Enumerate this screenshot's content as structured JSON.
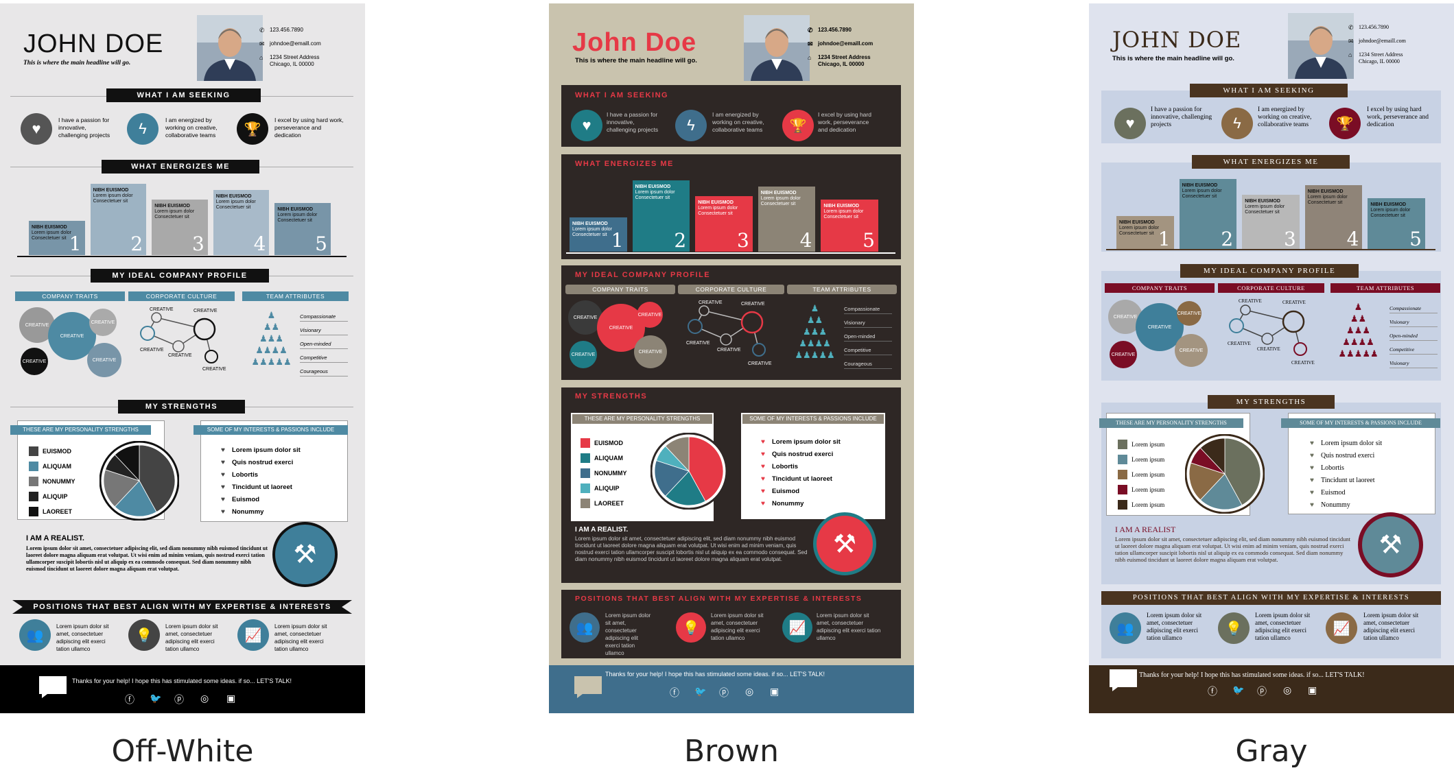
{
  "shared": {
    "name_upper": "JOHN DOE",
    "name_mixed": "John Doe",
    "headline": "This is where the main headline will go.",
    "phone": "123.456.7890",
    "email": "johndoe@emaill.com",
    "address1": "1234 Street Address",
    "address2": "Chicago, IL 00000",
    "seeking": "WHAT I AM SEEKING",
    "seek1": "I have a passion for innovative, challenging projects",
    "seek2": "I am energized by working on creative, collaborative teams",
    "seek3": "I excel by using hard work, perseverance and dedication",
    "energizes": "WHAT ENERGIZES ME",
    "bar_title": "NIBH EUISMOD",
    "bar_sub": "Lorem ipsum dolor Consectetuer sit",
    "bar_numbers": [
      "1",
      "2",
      "3",
      "4",
      "5"
    ],
    "company_profile": "MY IDEAL COMPANY PROFILE",
    "company_traits": "COMPANY TRAITS",
    "corporate_culture": "CORPORATE CULTURE",
    "team_attributes": "TEAM ATTRIBUTES",
    "creative": "CREATIVE",
    "attributes": [
      "Compassionate",
      "Visionary",
      "Open-minded",
      "Competitive",
      "Courageous"
    ],
    "gray_attributes": [
      "Compassionate",
      "Visionary",
      "Open-minded",
      "Competitive",
      "Visionary"
    ],
    "strengths": "MY STRENGTHS",
    "personality": "THESE ARE MY PERSONALITY STRENGTHS",
    "interests": "SOME OF MY INTERESTS & PASSIONS INCLUDE",
    "strength_items": [
      "EUISMOD",
      "ALIQUAM",
      "NONUMMY",
      "ALIQUIP",
      "LAOREET"
    ],
    "gray_strength_items": [
      "Lorem ipsum",
      "Lorem ipsum",
      "Lorem ipsum",
      "Lorem ipsum",
      "Lorem ipsum"
    ],
    "interest_items": [
      "Lorem ipsum dolor sit",
      "Quis nostrud exerci",
      "Lobortis",
      "Tincidunt ut laoreet",
      "Euismod",
      "Nonummy"
    ],
    "realist_upper": "I AM A REALIST.",
    "realist_mixed": "I AM A REALIST",
    "realist_text": "Lorem ipsum dolor sit amet, consectetuer adipiscing elit, sed diam nonummy nibh euismod tincidunt ut laoreet dolore magna aliquam erat volutpat. Ut wisi enim ad minim veniam, quis nostrud exerci tation ullamcorper suscipit lobortis nisl ut aliquip ex ea commodo consequat. Sed diam nonummy nibh euismod tincidunt ut laoreet dolore magna aliquam erat volutpat.",
    "positions": "POSITIONS THAT BEST ALIGN WITH MY EXPERTISE & INTERESTS",
    "pos_text": "Lorem ipsum dolor sit amet, consectetuer adipiscing elit exerci tation ullamco",
    "footer_text": "Thanks for your help! I hope this has stimulated some ideas. if so... LET'S TALK!"
  },
  "captions": {
    "offwhite": "Off-White",
    "brown": "Brown",
    "gray": "Gray"
  },
  "chart_data": [
    {
      "type": "bar",
      "categories": [
        "1",
        "2",
        "3",
        "4",
        "5"
      ],
      "values": [
        1.8,
        3.7,
        2.9,
        3.4,
        2.7
      ],
      "title": "WHAT ENERGIZES ME",
      "xlabel": "",
      "ylabel": ""
    },
    {
      "type": "pie",
      "categories": [
        "EUISMOD",
        "ALIQUAM",
        "NONUMMY",
        "ALIQUIP",
        "LAOREET"
      ],
      "values": [
        42,
        20,
        18,
        8,
        12
      ],
      "title": "THESE ARE MY PERSONALITY STRENGTHS"
    }
  ],
  "colors": {
    "offwhite_bg": "#e8e7e8",
    "offwhite_accent": "#3f7f9a",
    "offwhite_bar": "#7895a8",
    "brown_bg": "#c9c3ae",
    "brown_box": "#2e2725",
    "brown_red": "#e63946",
    "brown_teal": "#1f7c86",
    "gray_bg": "#dfe3ee",
    "gray_box": "#c8d2e4",
    "gray_brown": "#4a3420",
    "gray_maroon": "#7a0d25"
  },
  "icons": [
    "heart-icon",
    "lightning-icon",
    "trophy-icon",
    "phone-icon",
    "email-icon",
    "home-icon",
    "people-icon",
    "bulb-icon",
    "chart-up-icon",
    "tools-icon",
    "speech-bubble-icon",
    "facebook-icon",
    "twitter-icon",
    "pinterest-icon",
    "instagram-icon",
    "linkedin-icon"
  ]
}
